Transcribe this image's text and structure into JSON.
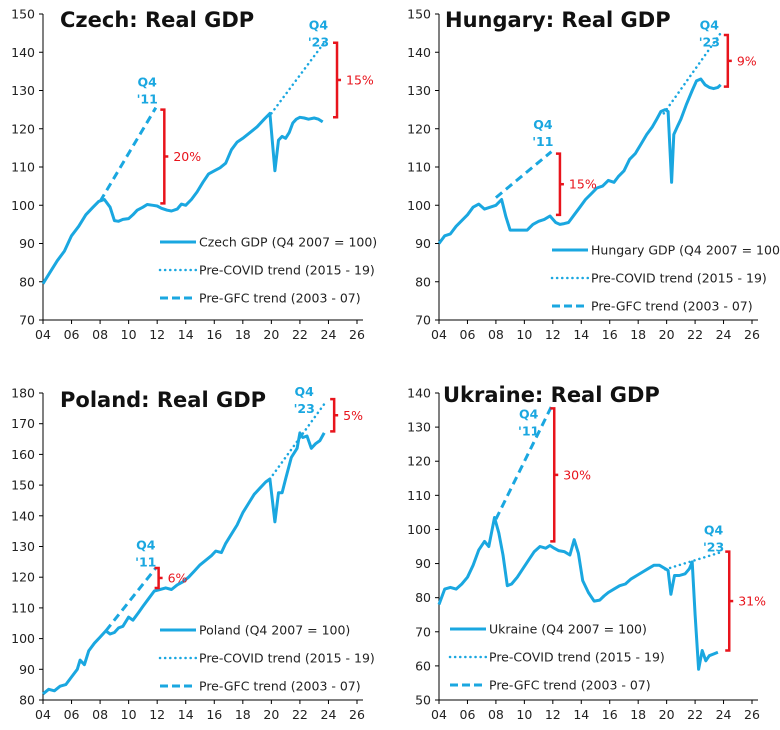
{
  "colors": {
    "series": "#1aa7e0",
    "gap": "#e8141c",
    "axis": "#000000"
  },
  "chart_data": [
    {
      "type": "line",
      "title": "Czech: Real GDP",
      "ylim": [
        70,
        150
      ],
      "yticks": [
        70,
        80,
        90,
        100,
        110,
        120,
        130,
        140,
        150
      ],
      "xlim": [
        2004,
        2026
      ],
      "xticks": [
        2004,
        2006,
        2008,
        2010,
        2012,
        2014,
        2016,
        2018,
        2020,
        2022,
        2024,
        2026
      ],
      "xticklabels": [
        "04",
        "06",
        "08",
        "10",
        "12",
        "14",
        "16",
        "18",
        "20",
        "22",
        "24",
        "26"
      ],
      "legend": [
        "Czech GDP (Q4 2007 = 100)",
        "Pre-COVID trend (2015 - 19)",
        "Pre-GFC trend (2003 - 07)"
      ],
      "legend_position": "center-right",
      "series": [
        {
          "name": "Czech GDP (Q4 2007 = 100)",
          "style": "solid",
          "x": [
            2004.0,
            2004.5,
            2005.0,
            2005.5,
            2006.0,
            2006.5,
            2007.0,
            2007.5,
            2007.9,
            2008.3,
            2008.7,
            2009.0,
            2009.3,
            2009.6,
            2010.0,
            2010.3,
            2010.6,
            2011.0,
            2011.3,
            2011.7,
            2012.0,
            2012.3,
            2012.7,
            2013.0,
            2013.4,
            2013.7,
            2014.0,
            2014.4,
            2014.8,
            2015.2,
            2015.6,
            2016.0,
            2016.4,
            2016.8,
            2017.2,
            2017.6,
            2018.0,
            2018.5,
            2019.0,
            2019.5,
            2019.9,
            2020.25,
            2020.5,
            2020.75,
            2021.0,
            2021.25,
            2021.5,
            2021.75,
            2022.0,
            2022.3,
            2022.6,
            2023.0,
            2023.3,
            2023.6
          ],
          "y": [
            79.5,
            82.5,
            85.5,
            88,
            92,
            94.5,
            97.5,
            99.5,
            101,
            101.5,
            99.5,
            96,
            95.8,
            96.3,
            96.5,
            97.5,
            98.7,
            99.5,
            100.2,
            100,
            99.8,
            99.2,
            98.7,
            98.5,
            99,
            100.3,
            100,
            101.5,
            103.5,
            106,
            108.2,
            109,
            109.8,
            111,
            114.5,
            116.5,
            117.5,
            119,
            120.5,
            122.5,
            124,
            109,
            117,
            118,
            117.5,
            119,
            121.5,
            122.5,
            123,
            122.8,
            122.5,
            122.8,
            122.5,
            121.8
          ]
        },
        {
          "name": "Pre-COVID trend (2015 - 19)",
          "style": "dotted",
          "x": [
            2020.0,
            2023.8
          ],
          "y": [
            124,
            143
          ]
        },
        {
          "name": "Pre-GFC trend (2003 - 07)",
          "style": "dashed",
          "x": [
            2008.0,
            2011.9
          ],
          "y": [
            101,
            125.5
          ]
        }
      ],
      "annotations": [
        {
          "text_lines": [
            "Q4",
            "'11"
          ],
          "kind": "label",
          "x": 2011.3,
          "y": 131
        },
        {
          "text_lines": [
            "Q4",
            "'23"
          ],
          "kind": "label",
          "x": 2023.3,
          "y": 146
        },
        {
          "kind": "gap",
          "label": "20%",
          "x": 2012.5,
          "y_top": 125,
          "y_bottom": 100.5
        },
        {
          "kind": "gap",
          "label": "15%",
          "x": 2024.6,
          "y_top": 142.5,
          "y_bottom": 123
        }
      ]
    },
    {
      "type": "line",
      "title": "Hungary: Real GDP",
      "ylim": [
        70,
        150
      ],
      "yticks": [
        70,
        80,
        90,
        100,
        110,
        120,
        130,
        140,
        150
      ],
      "xlim": [
        2004,
        2026
      ],
      "xticks": [
        2004,
        2006,
        2008,
        2010,
        2012,
        2014,
        2016,
        2018,
        2020,
        2022,
        2024,
        2026
      ],
      "xticklabels": [
        "04",
        "06",
        "08",
        "10",
        "12",
        "14",
        "16",
        "18",
        "20",
        "22",
        "24",
        "26"
      ],
      "legend": [
        "Hungary GDP (Q4 2007 = 100)",
        "Pre-COVID trend (2015 - 19)",
        "Pre-GFC trend (2003 - 07)"
      ],
      "legend_position": "center-right",
      "series": [
        {
          "name": "Hungary GDP (Q4 2007 = 100)",
          "style": "solid",
          "x": [
            2004.0,
            2004.4,
            2004.8,
            2005.2,
            2005.6,
            2006.0,
            2006.4,
            2006.8,
            2007.2,
            2007.6,
            2008.0,
            2008.4,
            2008.7,
            2009.0,
            2009.4,
            2009.8,
            2010.2,
            2010.6,
            2011.0,
            2011.4,
            2011.8,
            2012.2,
            2012.5,
            2012.8,
            2013.1,
            2013.5,
            2013.9,
            2014.3,
            2014.7,
            2015.1,
            2015.5,
            2015.9,
            2016.3,
            2016.6,
            2017.0,
            2017.4,
            2017.8,
            2018.2,
            2018.6,
            2019.0,
            2019.3,
            2019.6,
            2019.9,
            2020.1,
            2020.35,
            2020.5,
            2020.75,
            2021.0,
            2021.4,
            2021.8,
            2022.1,
            2022.4,
            2022.7,
            2023.0,
            2023.3,
            2023.6,
            2023.8
          ],
          "y": [
            90,
            92,
            92.5,
            94.5,
            96,
            97.5,
            99.5,
            100.3,
            99,
            99.5,
            100,
            101.5,
            97,
            93.5,
            93.5,
            93.5,
            93.5,
            95,
            95.8,
            96.3,
            97.2,
            95.5,
            95,
            95.2,
            95.5,
            97.5,
            99.5,
            101.5,
            103,
            104.5,
            105,
            106.5,
            106,
            107.5,
            109,
            112,
            113.5,
            116,
            118.5,
            120.5,
            122.5,
            124.5,
            125,
            124.5,
            106,
            118.5,
            120.5,
            122.5,
            126.5,
            130,
            132.5,
            133,
            131.5,
            130.8,
            130.5,
            130.8,
            131.5
          ]
        },
        {
          "name": "Pre-COVID trend (2015 - 19)",
          "style": "dotted",
          "x": [
            2019.8,
            2023.8
          ],
          "y": [
            124,
            145
          ]
        },
        {
          "name": "Pre-GFC trend (2003 - 07)",
          "style": "dashed",
          "x": [
            2008.0,
            2011.9
          ],
          "y": [
            102,
            114
          ]
        }
      ],
      "annotations": [
        {
          "text_lines": [
            "Q4",
            "'11"
          ],
          "kind": "label",
          "x": 2011.3,
          "y": 120
        },
        {
          "text_lines": [
            "Q4",
            "'23"
          ],
          "kind": "label",
          "x": 2023.0,
          "y": 146
        },
        {
          "kind": "gap",
          "label": "15%",
          "x": 2012.5,
          "y_top": 113.5,
          "y_bottom": 97.5
        },
        {
          "kind": "gap",
          "label": "9%",
          "x": 2024.3,
          "y_top": 144.5,
          "y_bottom": 131
        }
      ]
    },
    {
      "type": "line",
      "title": "Poland: Real GDP",
      "ylim": [
        80,
        180
      ],
      "yticks": [
        80,
        90,
        100,
        110,
        120,
        130,
        140,
        150,
        160,
        170,
        180
      ],
      "xlim": [
        2004,
        2026
      ],
      "xticks": [
        2004,
        2006,
        2008,
        2010,
        2012,
        2014,
        2016,
        2018,
        2020,
        2022,
        2024,
        2026
      ],
      "xticklabels": [
        "04",
        "06",
        "08",
        "10",
        "12",
        "14",
        "16",
        "18",
        "20",
        "22",
        "24",
        "26"
      ],
      "legend": [
        "Poland (Q4 2007 = 100)",
        "Pre-COVID trend (2015 - 19)",
        "Pre-GFC trend (2003 - 07)"
      ],
      "legend_position": "center-right",
      "series": [
        {
          "name": "Poland (Q4 2007 = 100)",
          "style": "solid",
          "x": [
            2004.0,
            2004.4,
            2004.8,
            2005.2,
            2005.6,
            2006.0,
            2006.4,
            2006.6,
            2006.9,
            2007.2,
            2007.6,
            2008.0,
            2008.4,
            2008.7,
            2009.0,
            2009.3,
            2009.6,
            2010.0,
            2010.3,
            2010.7,
            2011.0,
            2011.4,
            2011.8,
            2012.2,
            2012.6,
            2013.0,
            2013.4,
            2013.8,
            2014.2,
            2014.6,
            2015.0,
            2015.4,
            2015.8,
            2016.1,
            2016.5,
            2016.8,
            2017.2,
            2017.6,
            2018.0,
            2018.4,
            2018.8,
            2019.2,
            2019.6,
            2019.9,
            2020.25,
            2020.5,
            2020.75,
            2021.0,
            2021.4,
            2021.8,
            2022.0,
            2022.2,
            2022.5,
            2022.8,
            2023.1,
            2023.4,
            2023.7
          ],
          "y": [
            82,
            83.5,
            83,
            84.5,
            85,
            87.5,
            90,
            93,
            91.5,
            96,
            98.5,
            100.5,
            102.5,
            101.5,
            102,
            103.5,
            104,
            107,
            106,
            108.5,
            110.5,
            113,
            115.5,
            116,
            116.5,
            116,
            117.5,
            118.5,
            120,
            122,
            124,
            125.5,
            127,
            128.5,
            128,
            131,
            134,
            137,
            141,
            144,
            147,
            149,
            151,
            152,
            138,
            147.5,
            147.5,
            152,
            159,
            162,
            167,
            165.5,
            166,
            162,
            163.5,
            164.5,
            167
          ]
        },
        {
          "name": "Pre-COVID trend (2015 - 19)",
          "style": "dotted",
          "x": [
            2019.9,
            2023.8
          ],
          "y": [
            152,
            177
          ]
        },
        {
          "name": "Pre-GFC trend (2003 - 07)",
          "style": "dashed",
          "x": [
            2008.4,
            2011.9
          ],
          "y": [
            102.5,
            123
          ]
        }
      ],
      "annotations": [
        {
          "text_lines": [
            "Q4",
            "'11"
          ],
          "kind": "label",
          "x": 2011.2,
          "y": 129
        },
        {
          "text_lines": [
            "Q4",
            "'23"
          ],
          "kind": "label",
          "x": 2022.3,
          "y": 179
        },
        {
          "kind": "gap",
          "label": "6%",
          "x": 2012.1,
          "y_top": 123,
          "y_bottom": 116.5
        },
        {
          "kind": "gap",
          "label": "5%",
          "x": 2024.4,
          "y_top": 178,
          "y_bottom": 167.5
        }
      ]
    },
    {
      "type": "line",
      "title": "Ukraine: Real GDP",
      "ylim": [
        50,
        140
      ],
      "yticks": [
        50,
        60,
        70,
        80,
        90,
        100,
        110,
        120,
        130,
        140
      ],
      "xlim": [
        2004,
        2026
      ],
      "xticks": [
        2004,
        2006,
        2008,
        2010,
        2012,
        2014,
        2016,
        2018,
        2020,
        2022,
        2024,
        2026
      ],
      "xticklabels": [
        "04",
        "06",
        "08",
        "10",
        "12",
        "14",
        "16",
        "18",
        "20",
        "22",
        "24",
        "26"
      ],
      "legend": [
        "Ukraine (Q4 2007 = 100)",
        "Pre-COVID trend (2015 - 19)",
        "Pre-GFC trend (2003 - 07)"
      ],
      "legend_position": "bottom-left",
      "series": [
        {
          "name": "Ukraine (Q4 2007 = 100)",
          "style": "solid",
          "x": [
            2004.0,
            2004.4,
            2004.8,
            2005.2,
            2005.6,
            2006.0,
            2006.4,
            2006.8,
            2007.2,
            2007.5,
            2007.9,
            2008.2,
            2008.5,
            2008.8,
            2009.1,
            2009.5,
            2009.9,
            2010.3,
            2010.7,
            2011.1,
            2011.5,
            2011.8,
            2012.1,
            2012.4,
            2012.8,
            2013.2,
            2013.5,
            2013.8,
            2014.1,
            2014.5,
            2014.9,
            2015.3,
            2015.6,
            2015.9,
            2016.3,
            2016.7,
            2017.1,
            2017.5,
            2017.9,
            2018.3,
            2018.7,
            2019.1,
            2019.5,
            2019.9,
            2020.1,
            2020.3,
            2020.55,
            2020.9,
            2021.3,
            2021.6,
            2021.8,
            2022.0,
            2022.25,
            2022.5,
            2022.75,
            2023.0,
            2023.3,
            2023.6
          ],
          "y": [
            78,
            82.5,
            83,
            82.5,
            84,
            86,
            89.5,
            94,
            96.5,
            95,
            103.5,
            99,
            92.5,
            83.5,
            84,
            86,
            88.5,
            91,
            93.5,
            95,
            94.5,
            95.3,
            94.5,
            93.8,
            93.5,
            92.5,
            97,
            93,
            85,
            81.5,
            79,
            79.3,
            80.5,
            81.5,
            82.5,
            83.5,
            84,
            85.5,
            86.5,
            87.5,
            88.5,
            89.5,
            89.5,
            88.5,
            88,
            81,
            86.5,
            86.5,
            87,
            88.5,
            90.5,
            75,
            59,
            64.5,
            61.5,
            63,
            63.5,
            64
          ]
        },
        {
          "name": "Pre-COVID trend (2015 - 19)",
          "style": "dotted",
          "x": [
            2019.9,
            2023.8
          ],
          "y": [
            88.3,
            93.3
          ]
        },
        {
          "name": "Pre-GFC trend (2003 - 07)",
          "style": "dashed",
          "x": [
            2008.0,
            2011.9
          ],
          "y": [
            103,
            136
          ]
        }
      ],
      "annotations": [
        {
          "text_lines": [
            "Q4",
            "'11"
          ],
          "kind": "label",
          "x": 2010.3,
          "y": 132.5
        },
        {
          "text_lines": [
            "Q4",
            "'23"
          ],
          "kind": "label",
          "x": 2023.3,
          "y": 98.5
        },
        {
          "kind": "gap",
          "label": "30%",
          "x": 2012.1,
          "y_top": 135.5,
          "y_bottom": 96.5
        },
        {
          "kind": "gap",
          "label": "31%",
          "x": 2024.4,
          "y_top": 93.5,
          "y_bottom": 64.5
        }
      ]
    }
  ]
}
